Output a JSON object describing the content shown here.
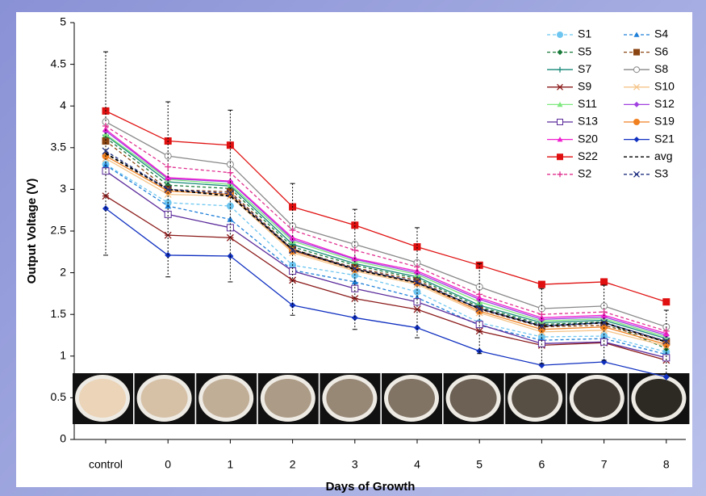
{
  "chart_data": {
    "type": "line",
    "x_label": "Days of Growth",
    "y_label": "Output Voltage (V)",
    "categories": [
      "control",
      "0",
      "1",
      "2",
      "3",
      "4",
      "5",
      "6",
      "7",
      "8"
    ],
    "ylim": [
      0,
      5
    ],
    "yticks": [
      0,
      0.5,
      1,
      1.5,
      2,
      2.5,
      3,
      3.5,
      4,
      4.5,
      5
    ],
    "legend": "top-right",
    "series": [
      {
        "name": "S1",
        "color": "#6ec6f0",
        "dash": true,
        "marker": "circle",
        "values": [
          3.3,
          2.84,
          2.8,
          2.09,
          1.97,
          1.77,
          1.4,
          1.23,
          1.24,
          1.05
        ]
      },
      {
        "name": "S4",
        "color": "#1e7fd8",
        "dash": true,
        "marker": "triangle",
        "values": [
          3.29,
          2.8,
          2.64,
          2.03,
          1.89,
          1.7,
          1.37,
          1.19,
          1.21,
          1.02
        ]
      },
      {
        "name": "S5",
        "color": "#1a7a3a",
        "dash": true,
        "marker": "diamond",
        "values": [
          3.62,
          3.05,
          3.01,
          2.31,
          2.09,
          1.93,
          1.59,
          1.38,
          1.41,
          1.09
        ]
      },
      {
        "name": "S6",
        "color": "#8b4513",
        "dash": true,
        "marker": "square",
        "values": [
          3.58,
          3.0,
          2.97,
          2.28,
          2.06,
          1.91,
          1.56,
          1.35,
          1.37,
          1.17
        ]
      },
      {
        "name": "S7",
        "color": "#1a8a7a",
        "dash": false,
        "marker": "plus",
        "values": [
          3.65,
          3.09,
          3.04,
          2.34,
          2.11,
          1.95,
          1.61,
          1.4,
          1.43,
          1.21
        ]
      },
      {
        "name": "S8",
        "color": "#888888",
        "dash": false,
        "marker": "circle-open",
        "values": [
          3.81,
          3.4,
          3.3,
          2.56,
          2.34,
          2.12,
          1.83,
          1.57,
          1.6,
          1.35
        ]
      },
      {
        "name": "S9",
        "color": "#8b1a1a",
        "dash": false,
        "marker": "star",
        "values": [
          2.92,
          2.45,
          2.42,
          1.91,
          1.69,
          1.56,
          1.3,
          1.13,
          1.16,
          0.95
        ]
      },
      {
        "name": "S10",
        "color": "#f5c58a",
        "dash": false,
        "marker": "cross",
        "values": [
          3.37,
          2.94,
          2.92,
          2.24,
          2.02,
          1.86,
          1.52,
          1.29,
          1.31,
          1.12
        ]
      },
      {
        "name": "S11",
        "color": "#7ee87e",
        "dash": false,
        "marker": "triangle",
        "values": [
          3.66,
          3.12,
          3.06,
          2.38,
          2.14,
          1.98,
          1.65,
          1.42,
          1.45,
          1.23
        ]
      },
      {
        "name": "S12",
        "color": "#a040e0",
        "dash": false,
        "marker": "diamond",
        "values": [
          3.7,
          3.13,
          3.09,
          2.4,
          2.16,
          2.0,
          1.68,
          1.44,
          1.47,
          1.25
        ]
      },
      {
        "name": "S13",
        "color": "#5a2a9a",
        "dash": false,
        "marker": "square-open",
        "values": [
          3.22,
          2.7,
          2.54,
          2.02,
          1.81,
          1.65,
          1.38,
          1.15,
          1.17,
          0.98
        ]
      },
      {
        "name": "S19",
        "color": "#f08020",
        "dash": false,
        "marker": "circle",
        "values": [
          3.4,
          2.98,
          2.94,
          2.26,
          2.04,
          1.88,
          1.54,
          1.32,
          1.35,
          1.14
        ]
      },
      {
        "name": "S20",
        "color": "#f020d0",
        "dash": false,
        "marker": "triangle",
        "values": [
          3.72,
          3.14,
          3.1,
          2.42,
          2.17,
          2.02,
          1.7,
          1.46,
          1.49,
          1.27
        ]
      },
      {
        "name": "S21",
        "color": "#1030c0",
        "dash": false,
        "marker": "diamond",
        "values": [
          2.77,
          2.21,
          2.2,
          1.61,
          1.46,
          1.34,
          1.06,
          0.89,
          0.93,
          0.75
        ]
      },
      {
        "name": "S22",
        "color": "#e01010",
        "dash": false,
        "marker": "square",
        "values": [
          3.94,
          3.58,
          3.53,
          2.79,
          2.57,
          2.31,
          2.09,
          1.86,
          1.89,
          1.65
        ]
      },
      {
        "name": "avg",
        "color": "#000000",
        "dash": true,
        "marker": "none",
        "values": [
          3.43,
          3.0,
          2.92,
          2.28,
          2.04,
          1.88,
          1.57,
          1.36,
          1.4,
          1.17
        ],
        "errors": [
          1.22,
          1.05,
          1.03,
          0.79,
          0.72,
          0.66,
          0.54,
          0.45,
          0.45,
          0.38
        ]
      },
      {
        "name": "S2",
        "color": "#e03090",
        "dash": true,
        "marker": "plus",
        "values": [
          3.76,
          3.27,
          3.2,
          2.51,
          2.27,
          2.07,
          1.74,
          1.5,
          1.53,
          1.3
        ]
      },
      {
        "name": "S3",
        "color": "#203080",
        "dash": true,
        "marker": "cross",
        "values": [
          3.46,
          3.0,
          2.95,
          2.27,
          2.05,
          1.89,
          1.57,
          1.36,
          1.4,
          1.18
        ]
      }
    ]
  }
}
